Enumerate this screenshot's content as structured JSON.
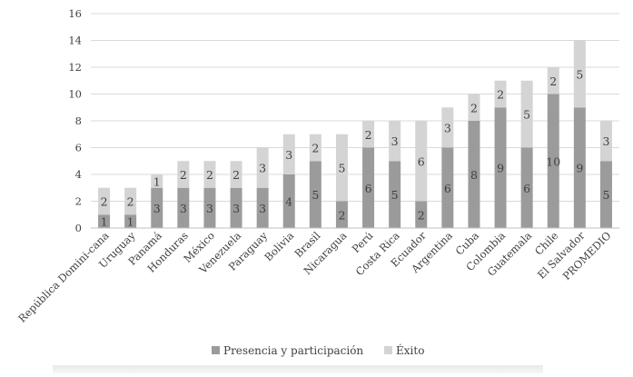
{
  "chart_data": {
    "type": "bar",
    "stacked": true,
    "categories": [
      "República Domini-cana",
      "Uruguay",
      "Panamá",
      "Honduras",
      "México",
      "Venezuela",
      "Paraguay",
      "Bolivia",
      "Brasil",
      "Nicaragua",
      "Perú",
      "Costa Rica",
      "Ecuador",
      "Argentina",
      "Cuba",
      "Colombia",
      "Guatemala",
      "Chile",
      "El Salvador",
      "PROMEDIO"
    ],
    "series": [
      {
        "name": "Presencia y participación",
        "color": "#9b9b9b",
        "values": [
          1,
          1,
          3,
          3,
          3,
          3,
          3,
          4,
          5,
          2,
          6,
          5,
          2,
          6,
          8,
          9,
          6,
          10,
          9,
          5
        ]
      },
      {
        "name": "Éxito",
        "color": "#d4d4d4",
        "values": [
          2,
          2,
          1,
          2,
          2,
          2,
          3,
          3,
          2,
          5,
          2,
          3,
          6,
          3,
          2,
          2,
          5,
          2,
          5,
          3
        ]
      }
    ],
    "ylim": [
      0,
      16
    ],
    "yticks": [
      "0",
      "2",
      "4",
      "6",
      "8",
      "10",
      "12",
      "14",
      "16"
    ],
    "grid": true,
    "legend_position": "bottom"
  }
}
